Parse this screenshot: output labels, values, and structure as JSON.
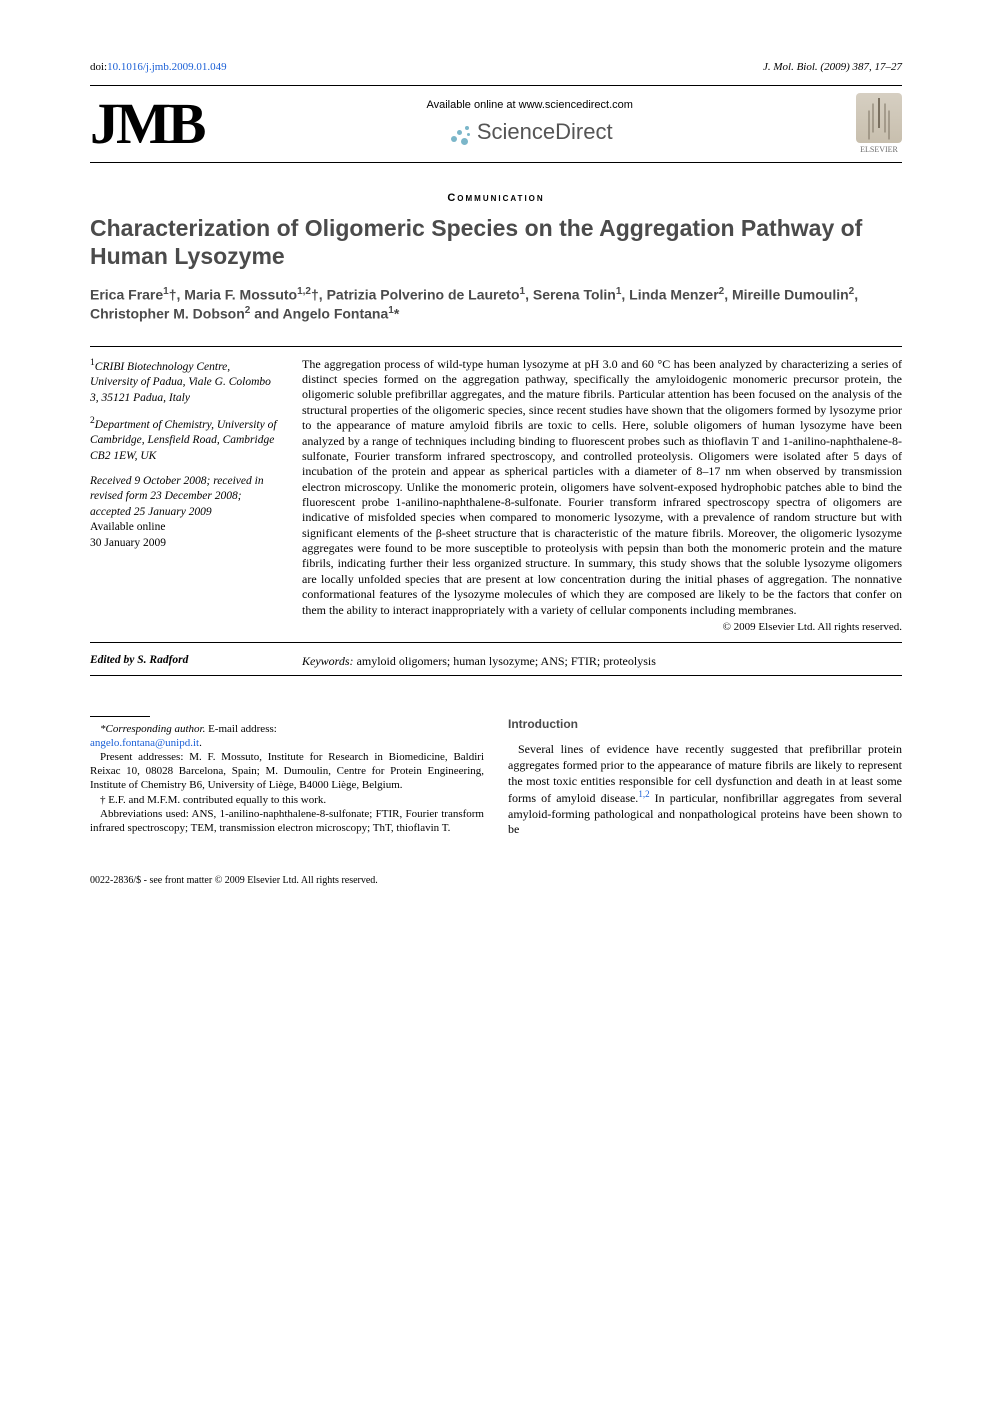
{
  "top": {
    "doi_prefix": "doi:",
    "doi": "10.1016/j.jmb.2009.01.049",
    "journal_ref": "J. Mol. Biol. (2009) 387, 17–27"
  },
  "masthead": {
    "logo": "JMB",
    "available_text": "Available online at www.sciencedirect.com",
    "sciencedirect": "ScienceDirect",
    "elsevier": "ELSEVIER"
  },
  "section_label": "Communication",
  "title": "Characterization of Oligomeric Species on the Aggregation Pathway of Human Lysozyme",
  "authors_html": "Erica Frare<sup>1</sup>†, Maria F. Mossuto<sup>1,2</sup>†, Patrizia Polverino de Laureto<sup>1</sup>, Serena Tolin<sup>1</sup>, Linda Menzer<sup>2</sup>, Mireille Dumoulin<sup>2</sup>, Christopher M. Dobson<sup>2</sup> and Angelo Fontana<sup>1</sup>*",
  "affiliations": [
    "<sup>1</sup>CRIBI Biotechnology Centre, University of Padua, Viale G. Colombo 3, 35121 Padua, Italy",
    "<sup>2</sup>Department of Chemistry, University of Cambridge, Lensfield Road, Cambridge CB2 1EW, UK"
  ],
  "history": "Received 9 October 2008; received in revised form 23 December 2008; accepted 25 January 2009",
  "history_online_label": "Available online",
  "history_online_date": "30 January 2009",
  "edited_by": "Edited by S. Radford",
  "abstract": "The aggregation process of wild-type human lysozyme at pH 3.0 and 60 °C has been analyzed by characterizing a series of distinct species formed on the aggregation pathway, specifically the amyloidogenic monomeric precursor protein, the oligomeric soluble prefibrillar aggregates, and the mature fibrils. Particular attention has been focused on the analysis of the structural properties of the oligomeric species, since recent studies have shown that the oligomers formed by lysozyme prior to the appearance of mature amyloid fibrils are toxic to cells. Here, soluble oligomers of human lysozyme have been analyzed by a range of techniques including binding to fluorescent probes such as thioflavin T and 1-anilino-naphthalene-8-sulfonate, Fourier transform infrared spectroscopy, and controlled proteolysis. Oligomers were isolated after 5 days of incubation of the protein and appear as spherical particles with a diameter of 8–17 nm when observed by transmission electron microscopy. Unlike the monomeric protein, oligomers have solvent-exposed hydrophobic patches able to bind the fluorescent probe 1-anilino-naphthalene-8-sulfonate. Fourier transform infrared spectroscopy spectra of oligomers are indicative of misfolded species when compared to monomeric lysozyme, with a prevalence of random structure but with significant elements of the β-sheet structure that is characteristic of the mature fibrils. Moreover, the oligomeric lysozyme aggregates were found to be more susceptible to proteolysis with pepsin than both the monomeric protein and the mature fibrils, indicating further their less organized structure. In summary, this study shows that the soluble lysozyme oligomers are locally unfolded species that are present at low concentration during the initial phases of aggregation. The nonnative conformational features of the lysozyme molecules of which they are composed are likely to be the factors that confer on them the ability to interact inappropriately with a variety of cellular components including membranes.",
  "copyright": "© 2009 Elsevier Ltd. All rights reserved.",
  "keywords_label": "Keywords:",
  "keywords": "amyloid oligomers; human lysozyme; ANS; FTIR; proteolysis",
  "footnotes": {
    "corr_label": "*Corresponding author.",
    "corr_text": " E-mail address:",
    "corr_email": "angelo.fontana@unipd.it",
    "present_addr": "Present addresses: M. F. Mossuto, Institute for Research in Biomedicine, Baldiri Reixac 10, 08028 Barcelona, Spain; M. Dumoulin, Centre for Protein Engineering, Institute of Chemistry B6, University of Liège, B4000 Liège, Belgium.",
    "equal": "† E.F. and M.F.M. contributed equally to this work.",
    "abbr": "Abbreviations used: ANS, 1-anilino-naphthalene-8-sulfonate; FTIR, Fourier transform infrared spectroscopy; TEM, transmission electron microscopy; ThT, thioflavin T."
  },
  "intro": {
    "heading": "Introduction",
    "para": "Several lines of evidence have recently suggested that prefibrillar protein aggregates formed prior to the appearance of mature fibrils are likely to represent the most toxic entities responsible for cell dysfunction and death in at least some forms of amyloid disease.",
    "ref": "1,2",
    "para_tail": " In particular, nonfibrillar aggregates from several amyloid-forming pathological and nonpathological proteins have been shown to be"
  },
  "bottom": "0022-2836/$ - see front matter © 2009 Elsevier Ltd. All rights reserved."
}
